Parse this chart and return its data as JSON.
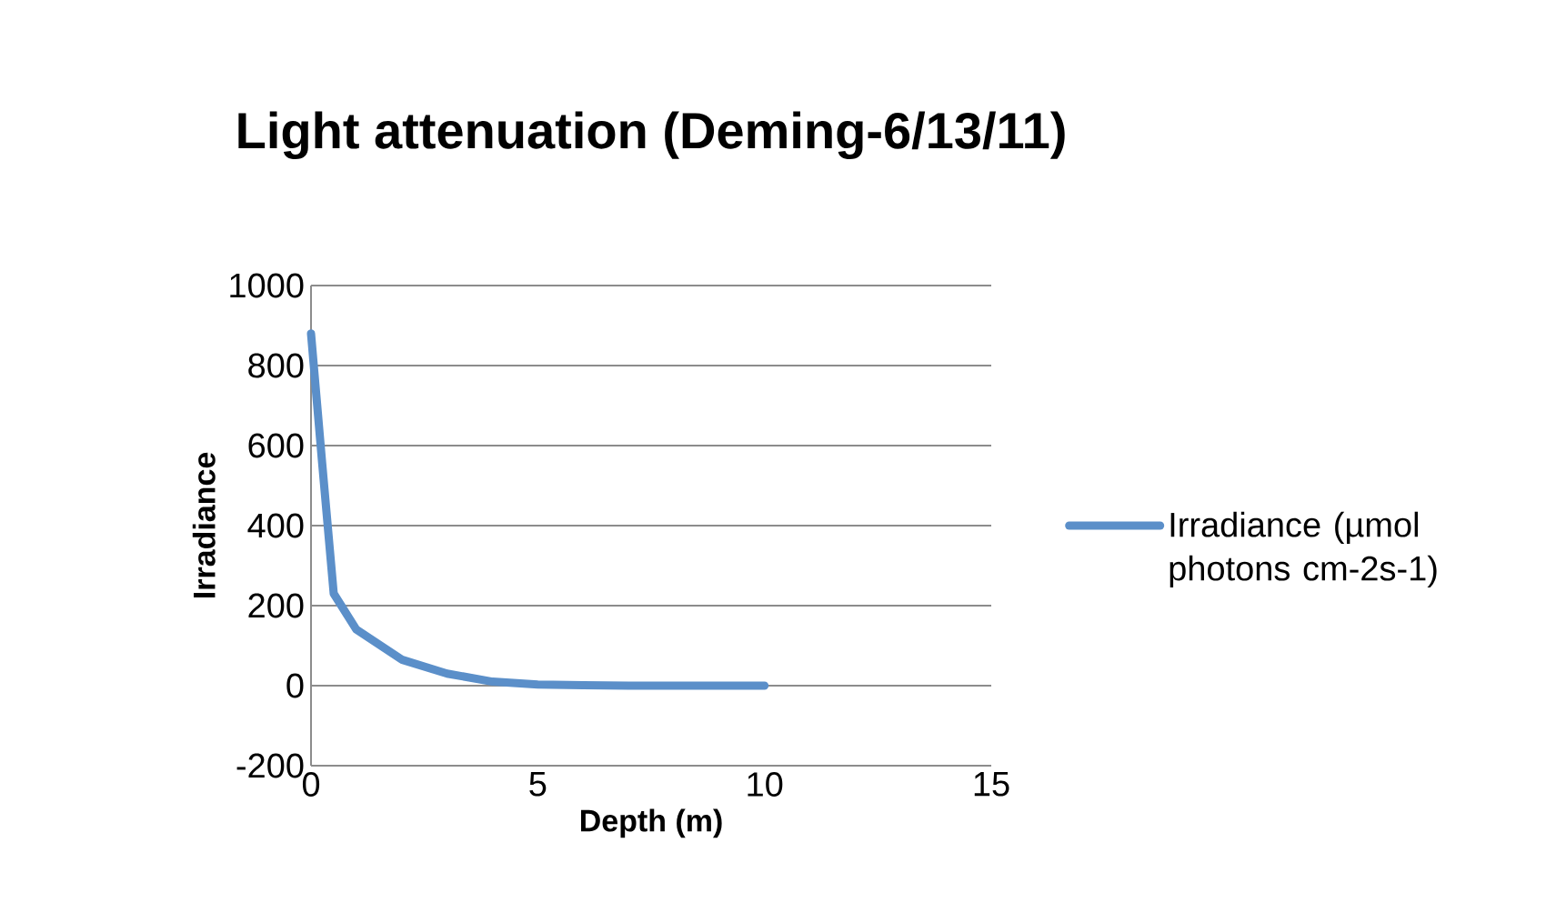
{
  "chart_data": {
    "type": "line",
    "title": "Light attenuation (Deming-6/13/11)",
    "xlabel": "Depth (m)",
    "ylabel": "Irradiance",
    "x": [
      0,
      0.25,
      0.5,
      1,
      2,
      3,
      4,
      5,
      6,
      7,
      8,
      9,
      10
    ],
    "series": [
      {
        "name": "Irradiance (µmol photons cm-2s-1)",
        "color": "#5b8fc9",
        "values": [
          880,
          550,
          230,
          140,
          65,
          30,
          10,
          3,
          1,
          0,
          0,
          0,
          0
        ]
      }
    ],
    "xlim": [
      0,
      15
    ],
    "xticks": [
      0,
      5,
      10,
      15
    ],
    "ylim": [
      -200,
      1000
    ],
    "yticks": [
      -200,
      0,
      200,
      400,
      600,
      800,
      1000
    ],
    "grid": "y",
    "legend": "right",
    "marker": "none",
    "line_style": "solid"
  }
}
